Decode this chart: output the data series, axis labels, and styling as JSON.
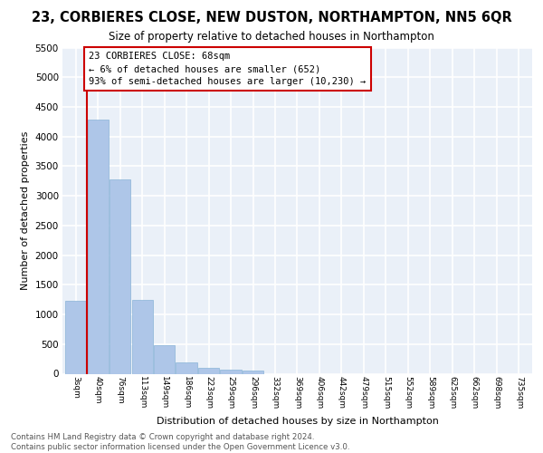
{
  "title": "23, CORBIERES CLOSE, NEW DUSTON, NORTHAMPTON, NN5 6QR",
  "subtitle": "Size of property relative to detached houses in Northampton",
  "xlabel": "Distribution of detached houses by size in Northampton",
  "ylabel": "Number of detached properties",
  "bar_color": "#aec6e8",
  "bar_edge_color": "#8ab4d8",
  "background_color": "#eaf0f8",
  "grid_color": "#ffffff",
  "annotation_box_color": "#cc0000",
  "annotation_text": "23 CORBIERES CLOSE: 68sqm\n← 6% of detached houses are smaller (652)\n93% of semi-detached houses are larger (10,230) →",
  "property_line_color": "#cc0000",
  "property_bar_index": 1,
  "categories": [
    "3sqm",
    "40sqm",
    "76sqm",
    "113sqm",
    "149sqm",
    "186sqm",
    "223sqm",
    "259sqm",
    "296sqm",
    "332sqm",
    "369sqm",
    "406sqm",
    "442sqm",
    "479sqm",
    "515sqm",
    "552sqm",
    "589sqm",
    "625sqm",
    "662sqm",
    "698sqm",
    "735sqm"
  ],
  "values": [
    1230,
    4280,
    3270,
    1240,
    480,
    195,
    100,
    70,
    50,
    0,
    0,
    0,
    0,
    0,
    0,
    0,
    0,
    0,
    0,
    0,
    0
  ],
  "ylim": [
    0,
    5500
  ],
  "yticks": [
    0,
    500,
    1000,
    1500,
    2000,
    2500,
    3000,
    3500,
    4000,
    4500,
    5000,
    5500
  ],
  "footer_line1": "Contains HM Land Registry data © Crown copyright and database right 2024.",
  "footer_line2": "Contains public sector information licensed under the Open Government Licence v3.0."
}
